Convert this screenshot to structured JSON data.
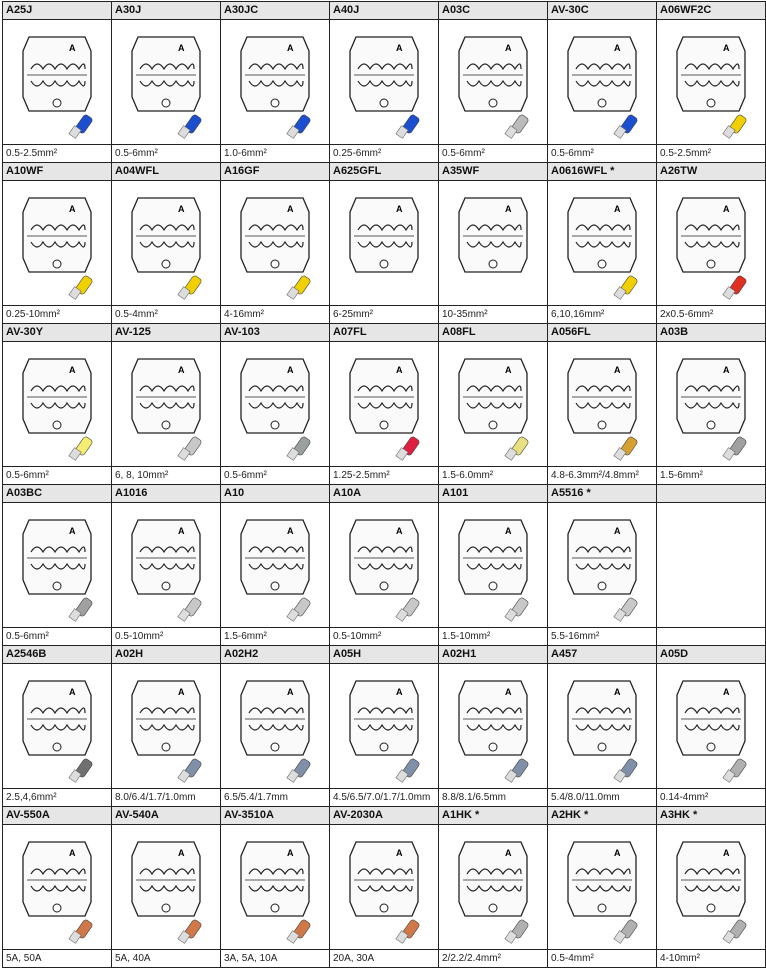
{
  "rows": [
    [
      {
        "model": "A25J",
        "range": "0.5-2.5mm²",
        "terminal_color": "#1c4fd0"
      },
      {
        "model": "A30J",
        "range": "0.5-6mm²",
        "terminal_color": "#1c4fd0"
      },
      {
        "model": "A30JC",
        "range": "1.0-6mm²",
        "terminal_color": "#1c4fd0"
      },
      {
        "model": "A40J",
        "range": "0.25-6mm²",
        "terminal_color": "#1c4fd0"
      },
      {
        "model": "A03C",
        "range": "0.5-6mm²",
        "terminal_color": "#bbbbbb"
      },
      {
        "model": "AV-30C",
        "range": "0.5-6mm²",
        "terminal_color": "#1c4fd0"
      },
      {
        "model": "A06WF2C",
        "range": "0.5-2.5mm²",
        "terminal_color": "#f0d000"
      }
    ],
    [
      {
        "model": "A10WF",
        "range": "0.25-10mm²",
        "terminal_color": "#f0d000"
      },
      {
        "model": "A04WFL",
        "range": "0.5-4mm²",
        "terminal_color": "#f0d000"
      },
      {
        "model": "A16GF",
        "range": "4-16mm²",
        "terminal_color": "#f0d000"
      },
      {
        "model": "A625GFL",
        "range": "6-25mm²",
        "terminal_color": ""
      },
      {
        "model": "A35WF",
        "range": "10-35mm²",
        "terminal_color": ""
      },
      {
        "model": "A0616WFL *",
        "range": "6,10,16mm²",
        "terminal_color": "#f0d000"
      },
      {
        "model": "A26TW",
        "range": "2x0.5-6mm²",
        "terminal_color": "#e03020"
      }
    ],
    [
      {
        "model": "AV-30Y",
        "range": "0.5-6mm²",
        "terminal_color": "#f5ee70"
      },
      {
        "model": "AV-125",
        "range": "6, 8, 10mm²",
        "terminal_color": "#c8c8c8"
      },
      {
        "model": "AV-103",
        "range": "0.5-6mm²",
        "terminal_color": "#9aa0a0"
      },
      {
        "model": "A07FL",
        "range": "1.25-2.5mm²",
        "terminal_color": "#e02040"
      },
      {
        "model": "A08FL",
        "range": "1.5-6.0mm²",
        "terminal_color": "#e8e080"
      },
      {
        "model": "A056FL",
        "range": "4.8-6.3mm²/4.8mm²",
        "terminal_color": "#d8a030"
      },
      {
        "model": "A03B",
        "range": "1.5-6mm²",
        "terminal_color": "#a0a0a0"
      }
    ],
    [
      {
        "model": "A03BC",
        "range": "0.5-6mm²",
        "terminal_color": "#a0a0a0"
      },
      {
        "model": "A1016",
        "range": "0.5-10mm²",
        "terminal_color": "#c8c8c8"
      },
      {
        "model": "A10",
        "range": "1.5-6mm²",
        "terminal_color": "#c8c8c8"
      },
      {
        "model": "A10A",
        "range": "0.5-10mm²",
        "terminal_color": "#c8c8c8"
      },
      {
        "model": "A101",
        "range": "1.5-10mm²",
        "terminal_color": "#c8c8c8"
      },
      {
        "model": "A5516 *",
        "range": "5.5-16mm²",
        "terminal_color": "#c8c8c8"
      },
      {
        "model": "",
        "range": "",
        "terminal_color": ""
      }
    ],
    [
      {
        "model": "A2546B",
        "range": "2.5,4,6mm²",
        "terminal_color": "#707070"
      },
      {
        "model": "A02H",
        "range": "8.0/6.4/1.7/1.0mm",
        "terminal_color": "#8090a8"
      },
      {
        "model": "A02H2",
        "range": "6.5/5.4/1.7mm",
        "terminal_color": "#8090a8"
      },
      {
        "model": "A05H",
        "range": "4.5/6.5/7.0/1.7/1.0mm",
        "terminal_color": "#8090a8"
      },
      {
        "model": "A02H1",
        "range": "8.8/8.1/6.5mm",
        "terminal_color": "#8090a8"
      },
      {
        "model": "A457",
        "range": "5.4/8.0/11.0mm",
        "terminal_color": "#8090a8"
      },
      {
        "model": "A05D",
        "range": "0.14-4mm²",
        "terminal_color": "#b0b0b0"
      }
    ],
    [
      {
        "model": "AV-550A",
        "range": "5A, 50A",
        "terminal_color": "#d07848"
      },
      {
        "model": "AV-540A",
        "range": "5A, 40A",
        "terminal_color": "#d07848"
      },
      {
        "model": "AV-3510A",
        "range": "3A, 5A, 10A",
        "terminal_color": "#d07848"
      },
      {
        "model": "AV-2030A",
        "range": "20A, 30A",
        "terminal_color": "#d07848"
      },
      {
        "model": "A1HK *",
        "range": "2/2.2/2.4mm²",
        "terminal_color": "#b0b0b0"
      },
      {
        "model": "A2HK *",
        "range": "0.5-4mm²",
        "terminal_color": "#b0b0b0"
      },
      {
        "model": "A3HK *",
        "range": "4-10mm²",
        "terminal_color": "#b0b0b0"
      }
    ]
  ]
}
